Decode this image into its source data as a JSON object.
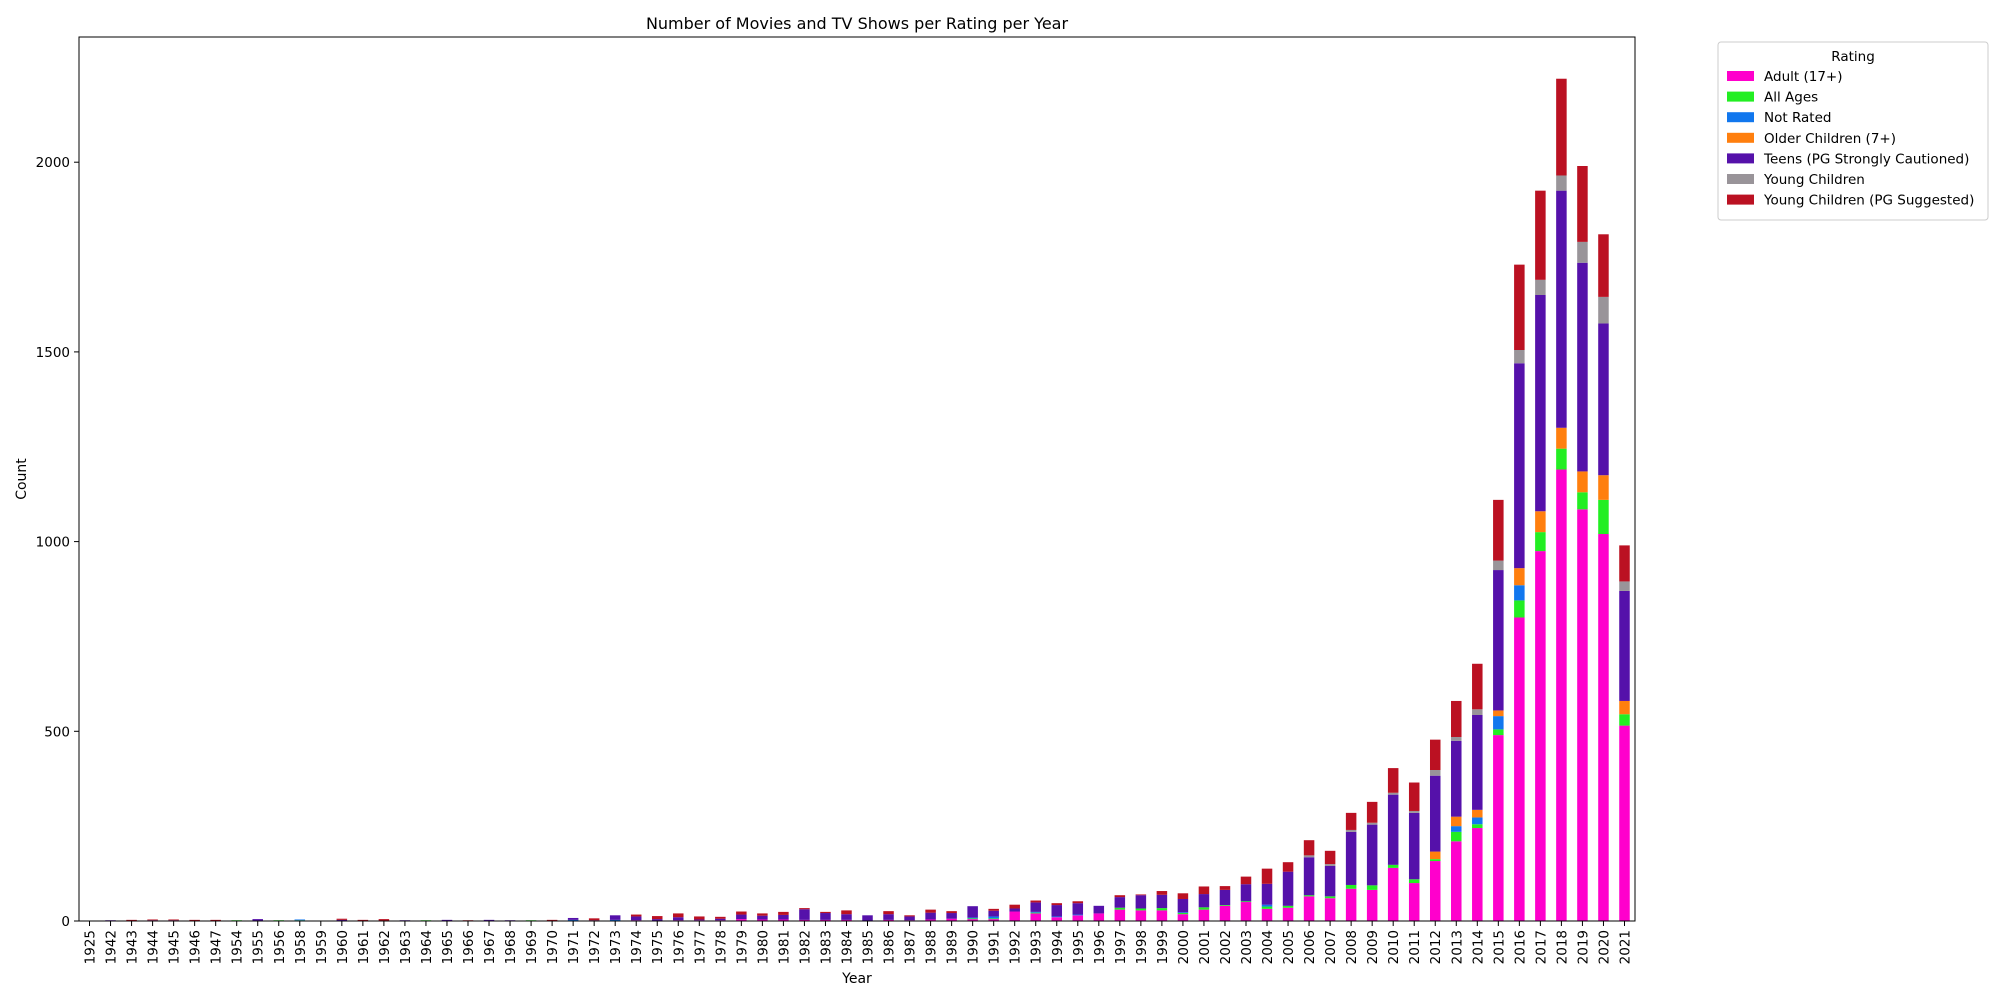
{
  "chart_data": {
    "type": "bar",
    "stacked": true,
    "title": "Number of Movies and TV Shows per Rating per Year",
    "xlabel": "Year",
    "ylabel": "Count",
    "ylim": [
      0,
      2330
    ],
    "yticks": [
      0,
      500,
      1000,
      1500,
      2000
    ],
    "grid": false,
    "legend": {
      "title": "Rating",
      "position": "outside-top-right"
    },
    "categories": [
      "1925",
      "1942",
      "1943",
      "1944",
      "1945",
      "1946",
      "1947",
      "1954",
      "1955",
      "1956",
      "1958",
      "1959",
      "1960",
      "1961",
      "1962",
      "1963",
      "1964",
      "1965",
      "1966",
      "1967",
      "1968",
      "1969",
      "1970",
      "1971",
      "1972",
      "1973",
      "1974",
      "1975",
      "1976",
      "1977",
      "1978",
      "1979",
      "1980",
      "1981",
      "1982",
      "1983",
      "1984",
      "1985",
      "1986",
      "1987",
      "1988",
      "1989",
      "1990",
      "1991",
      "1992",
      "1993",
      "1994",
      "1995",
      "1996",
      "1997",
      "1998",
      "1999",
      "2000",
      "2001",
      "2002",
      "2003",
      "2004",
      "2005",
      "2006",
      "2007",
      "2008",
      "2009",
      "2010",
      "2011",
      "2012",
      "2013",
      "2014",
      "2015",
      "2016",
      "2017",
      "2018",
      "2019",
      "2020",
      "2021"
    ],
    "series": [
      {
        "name": "Adult (17+)",
        "color": "#ff00cc",
        "values": [
          0,
          0,
          0,
          0,
          0,
          0,
          0,
          0,
          0,
          0,
          0,
          0,
          0,
          0,
          0,
          0,
          0,
          0,
          0,
          0,
          0,
          0,
          0,
          0,
          0,
          0,
          2,
          0,
          2,
          2,
          2,
          5,
          4,
          4,
          3,
          3,
          3,
          0,
          3,
          2,
          4,
          6,
          5,
          5,
          25,
          20,
          10,
          15,
          20,
          30,
          28,
          28,
          18,
          30,
          40,
          50,
          32,
          35,
          65,
          60,
          85,
          82,
          140,
          100,
          158,
          210,
          245,
          490,
          800,
          975,
          1190,
          1085,
          1020,
          515
        ]
      },
      {
        "name": "All Ages",
        "color": "#22ee22",
        "values": [
          0,
          0,
          0,
          0,
          0,
          0,
          0,
          2,
          0,
          2,
          2,
          0,
          0,
          0,
          0,
          0,
          2,
          0,
          0,
          0,
          0,
          2,
          0,
          0,
          0,
          0,
          0,
          0,
          0,
          0,
          0,
          0,
          0,
          0,
          0,
          0,
          0,
          0,
          0,
          0,
          0,
          0,
          2,
          2,
          0,
          2,
          0,
          0,
          0,
          5,
          5,
          6,
          3,
          6,
          2,
          2,
          6,
          5,
          3,
          5,
          10,
          12,
          8,
          10,
          5,
          25,
          10,
          15,
          45,
          50,
          55,
          45,
          90,
          30
        ]
      },
      {
        "name": "Not Rated",
        "color": "#1177ee",
        "values": [
          0,
          0,
          0,
          0,
          0,
          0,
          0,
          0,
          0,
          0,
          2,
          0,
          0,
          0,
          0,
          0,
          0,
          0,
          0,
          0,
          0,
          0,
          0,
          3,
          0,
          3,
          0,
          0,
          0,
          0,
          0,
          0,
          0,
          0,
          0,
          0,
          0,
          0,
          0,
          0,
          0,
          0,
          2,
          5,
          0,
          2,
          2,
          2,
          0,
          0,
          0,
          0,
          2,
          0,
          0,
          0,
          5,
          0,
          0,
          0,
          0,
          0,
          0,
          0,
          0,
          15,
          18,
          35,
          40,
          0,
          0,
          0,
          0,
          0
        ]
      },
      {
        "name": "Older Children (7+)",
        "color": "#ff7f0e",
        "values": [
          0,
          0,
          0,
          0,
          0,
          0,
          0,
          0,
          0,
          0,
          0,
          0,
          0,
          0,
          0,
          0,
          0,
          0,
          0,
          0,
          0,
          0,
          0,
          0,
          0,
          0,
          0,
          0,
          0,
          0,
          0,
          0,
          0,
          0,
          0,
          0,
          0,
          0,
          0,
          0,
          0,
          0,
          0,
          0,
          0,
          0,
          0,
          0,
          0,
          0,
          0,
          0,
          0,
          0,
          0,
          0,
          0,
          0,
          0,
          0,
          0,
          0,
          0,
          0,
          20,
          25,
          20,
          15,
          45,
          55,
          55,
          55,
          65,
          35
        ]
      },
      {
        "name": "Teens (PG Strongly Cautioned)",
        "color": "#5511aa",
        "values": [
          0,
          2,
          0,
          2,
          2,
          0,
          0,
          0,
          5,
          0,
          0,
          0,
          3,
          0,
          0,
          2,
          0,
          3,
          0,
          3,
          2,
          0,
          0,
          5,
          2,
          12,
          10,
          5,
          8,
          2,
          4,
          12,
          10,
          12,
          28,
          18,
          15,
          15,
          15,
          10,
          18,
          15,
          30,
          15,
          8,
          25,
          30,
          30,
          20,
          28,
          35,
          35,
          35,
          35,
          40,
          45,
          55,
          90,
          100,
          80,
          140,
          160,
          185,
          175,
          200,
          200,
          250,
          370,
          540,
          570,
          625,
          550,
          400,
          290
        ]
      },
      {
        "name": "Young Children",
        "color": "#999499",
        "values": [
          0,
          0,
          0,
          0,
          0,
          0,
          0,
          0,
          0,
          0,
          0,
          0,
          0,
          0,
          0,
          0,
          0,
          0,
          0,
          0,
          0,
          0,
          0,
          0,
          0,
          0,
          0,
          0,
          0,
          0,
          0,
          0,
          0,
          0,
          0,
          0,
          0,
          0,
          0,
          0,
          0,
          0,
          0,
          0,
          0,
          0,
          0,
          0,
          0,
          0,
          0,
          0,
          0,
          0,
          0,
          0,
          0,
          0,
          5,
          5,
          5,
          5,
          5,
          5,
          15,
          10,
          15,
          25,
          35,
          40,
          40,
          55,
          70,
          25
        ]
      },
      {
        "name": "Young Children (PG Suggested)",
        "color": "#bb1122",
        "values": [
          0,
          0,
          3,
          2,
          2,
          3,
          3,
          0,
          0,
          0,
          0,
          0,
          3,
          3,
          5,
          0,
          0,
          0,
          2,
          0,
          0,
          0,
          3,
          0,
          5,
          0,
          5,
          8,
          10,
          8,
          5,
          8,
          6,
          8,
          3,
          3,
          10,
          0,
          8,
          3,
          8,
          5,
          0,
          5,
          10,
          5,
          5,
          5,
          0,
          5,
          2,
          10,
          15,
          20,
          10,
          20,
          40,
          25,
          40,
          35,
          45,
          55,
          65,
          75,
          80,
          95,
          120,
          160,
          225,
          235,
          255,
          200,
          165,
          95
        ]
      }
    ]
  }
}
